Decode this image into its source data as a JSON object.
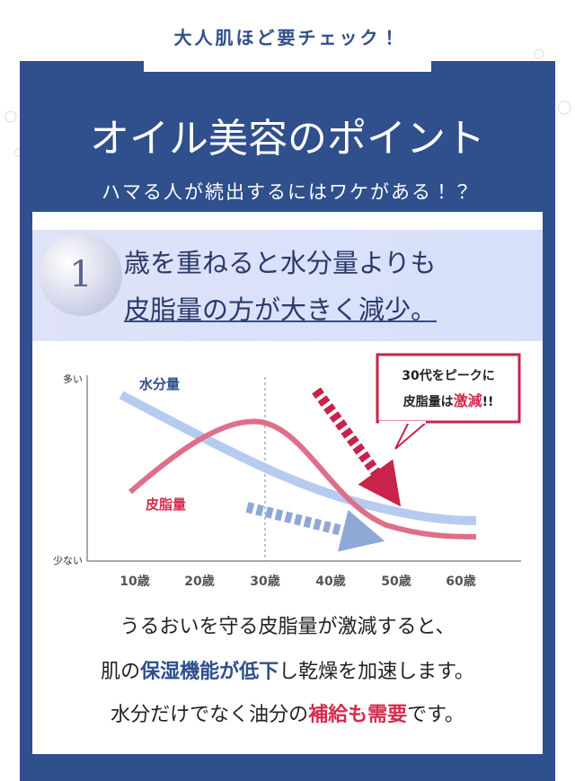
{
  "header": {
    "badge": "大人肌ほど要チェック！",
    "title": "オイル美容のポイント",
    "subtitle": "ハマる人が続出するにはワケがある！？"
  },
  "point": {
    "number": "1",
    "lines": [
      "歳を重ねると水分量よりも",
      "皮脂量の方が大きく減少。"
    ]
  },
  "chart": {
    "y_labels": [
      "多い",
      "少ない"
    ],
    "x_labels": [
      "10歳",
      "20歳",
      "30歳",
      "40歳",
      "50歳",
      "60歳"
    ],
    "series_labels": [
      "水分量",
      "皮脂量"
    ],
    "callout": [
      "30代をピークに",
      "皮脂量は",
      "激減",
      "!!"
    ]
  },
  "body": {
    "lines": [
      [
        "うるおいを守る皮脂量が激減すると、"
      ],
      [
        "肌の",
        "保湿機能が低下",
        "し乾燥を加速します。"
      ],
      [
        "水分だけでなく油分の",
        "補給も需要",
        "です。"
      ]
    ]
  }
}
